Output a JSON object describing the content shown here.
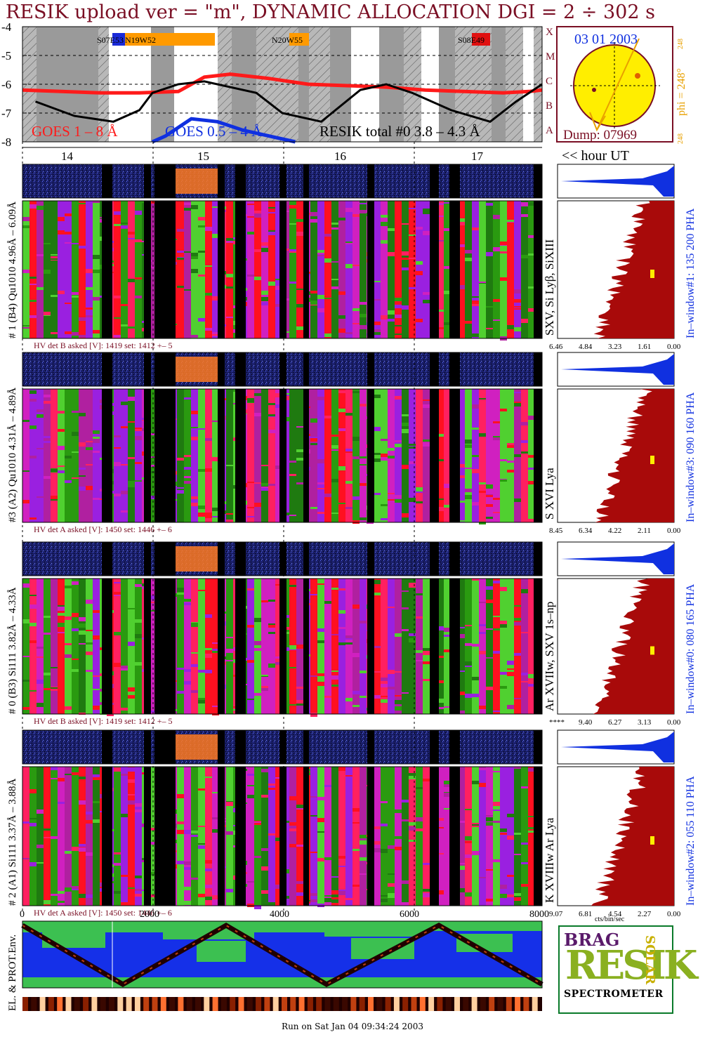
{
  "title": "RESIK upload ver = \"m\", DYNAMIC ALLOCATION  DGI =   2 ÷ 302 s",
  "footer": "Run on Sat Jan 04 09:34:24 2003",
  "top_panel": {
    "y_ticks": [
      "-4",
      "-5",
      "-6",
      "-7",
      "-8"
    ],
    "class_letters": [
      "X",
      "M",
      "C",
      "B",
      "A"
    ],
    "hour_ticks": [
      "14",
      "15",
      "16",
      "17"
    ],
    "hour_label": "<< hour UT",
    "legend": {
      "goes_long": "GOES 1 – 8 Å",
      "goes_short": "GOES 0.5 – 4 Å",
      "resik": "RESIK total #0  3.8 – 4.3 Å"
    },
    "region_labels": [
      "S07E53",
      "N19W52",
      "N20W55",
      "S08E49"
    ],
    "colors": {
      "goes_long": "#ff1a1a",
      "goes_short": "#1030e0",
      "resik": "#000000",
      "band_gray": "#9a9a9a",
      "region_orange": "#ff9a00",
      "region_blue": "#1a2ad8",
      "region_red": "#e01010"
    }
  },
  "sun_panel": {
    "date": "03 01 2003",
    "phi_label": "phi = 248°",
    "phi_small": "248",
    "phi_small2": "248",
    "dump": "Dump: 07969",
    "colors": {
      "disk": "#ffee00",
      "border": "#7a0f24",
      "arrow": "#e8a000"
    }
  },
  "channels": [
    {
      "id": "ch1",
      "left_label": "# 1 (B4) Qu1010 4.96Å – 6.09Å",
      "line_label": "SXV, Si Lyβ, SiXIII",
      "window_label": "In–window#1:  135 200 PHA",
      "hv": "HV det B asked [V]:  1419 set:  1412 +–    5",
      "spectrum_ticks": [
        "6.46",
        "4.84",
        "3.23",
        "1.61",
        "0.00"
      ]
    },
    {
      "id": "ch3",
      "left_label": "#3 (A2) Qu1010  4.31Å – 4.89Å",
      "line_label": "S XVI Lya",
      "window_label": "In–window#3:  090 160 PHA",
      "hv": "HV det A asked [V]:  1450 set:  1446 +–    6",
      "spectrum_ticks": [
        "8.45",
        "6.34",
        "4.22",
        "2.11",
        "0.00"
      ]
    },
    {
      "id": "ch0",
      "left_label": "# 0 (B3) Si111  3.82Å – 4.33Å",
      "line_label": "Ar XVIIw,  SXV 1s–np",
      "window_label": "In–window#0:  080 165 PHA",
      "hv": "HV det B asked [V]:  1419 set:  1412 +–    5",
      "spectrum_ticks": [
        "****",
        "9.40",
        "6.27",
        "3.13",
        "0.00"
      ]
    },
    {
      "id": "ch2",
      "left_label": "# 2 (A1) Si111  3.37Å – 3.88Å",
      "line_label": "K XVIIIw  Ar Lya",
      "window_label": "In–window#2:  055 110 PHA",
      "hv": "HV det A asked [V]:  1450 set:  1446 +–    6",
      "spectrum_ticks": [
        "9.07",
        "6.81",
        "4.54",
        "2.27",
        "0.00"
      ]
    }
  ],
  "spectrum_unit": "cts/bin/sec",
  "orbit_axis_ticks": [
    "0",
    "2000",
    "4000",
    "6000",
    "8000"
  ],
  "env_label": "EL. & PROT.Env.",
  "logo": {
    "top": "BRAG",
    "main": "RESIK",
    "side": "SOLAR",
    "spectrometer": "SPECTROMETER"
  },
  "chart_data": [
    {
      "type": "line",
      "title": "RESIK upload ver = \"m\", DYNAMIC ALLOCATION  DGI =   2 ÷ 302 s",
      "xlabel": "",
      "ylabel": "",
      "x_ticks": [
        "14",
        "15",
        "16",
        "17"
      ],
      "ylim": [
        -8,
        -4
      ],
      "y_ticks": [
        -4,
        -5,
        -6,
        -7,
        -8
      ],
      "series": [
        {
          "name": "GOES 1 – 8 Å",
          "x": [
            13.5,
            13.8,
            14.1,
            14.4,
            14.7,
            14.9,
            15.1,
            15.4,
            15.7,
            16.0,
            16.3,
            16.6,
            16.9,
            17.2,
            17.4,
            17.5
          ],
          "values": [
            -6.2,
            -6.25,
            -6.3,
            -6.3,
            -6.25,
            -5.75,
            -5.65,
            -5.8,
            -6.0,
            -6.05,
            -6.1,
            -6.2,
            -6.25,
            -6.3,
            -6.25,
            -6.2
          ]
        },
        {
          "name": "GOES 0.5 – 4 Å",
          "x": [
            14.5,
            14.6,
            14.8,
            15.0,
            15.2,
            15.4,
            15.6
          ],
          "values": [
            -8.0,
            -7.8,
            -7.2,
            -7.3,
            -7.6,
            -7.8,
            -8.0
          ]
        },
        {
          "name": "RESIK total #0  3.8 – 4.3 Å",
          "x": [
            13.6,
            13.9,
            14.2,
            14.4,
            14.5,
            14.7,
            14.9,
            15.3,
            15.5,
            15.8,
            16.1,
            16.3,
            16.5,
            16.8,
            17.1,
            17.3,
            17.5
          ],
          "values": [
            -6.6,
            -7.1,
            -7.3,
            -6.9,
            -6.3,
            -6.0,
            -5.9,
            -6.3,
            -7.0,
            -7.3,
            -6.2,
            -6.0,
            -6.3,
            -6.9,
            -7.3,
            -6.6,
            -6.0
          ]
        }
      ],
      "x_range": [
        13.5,
        17.5
      ]
    }
  ]
}
